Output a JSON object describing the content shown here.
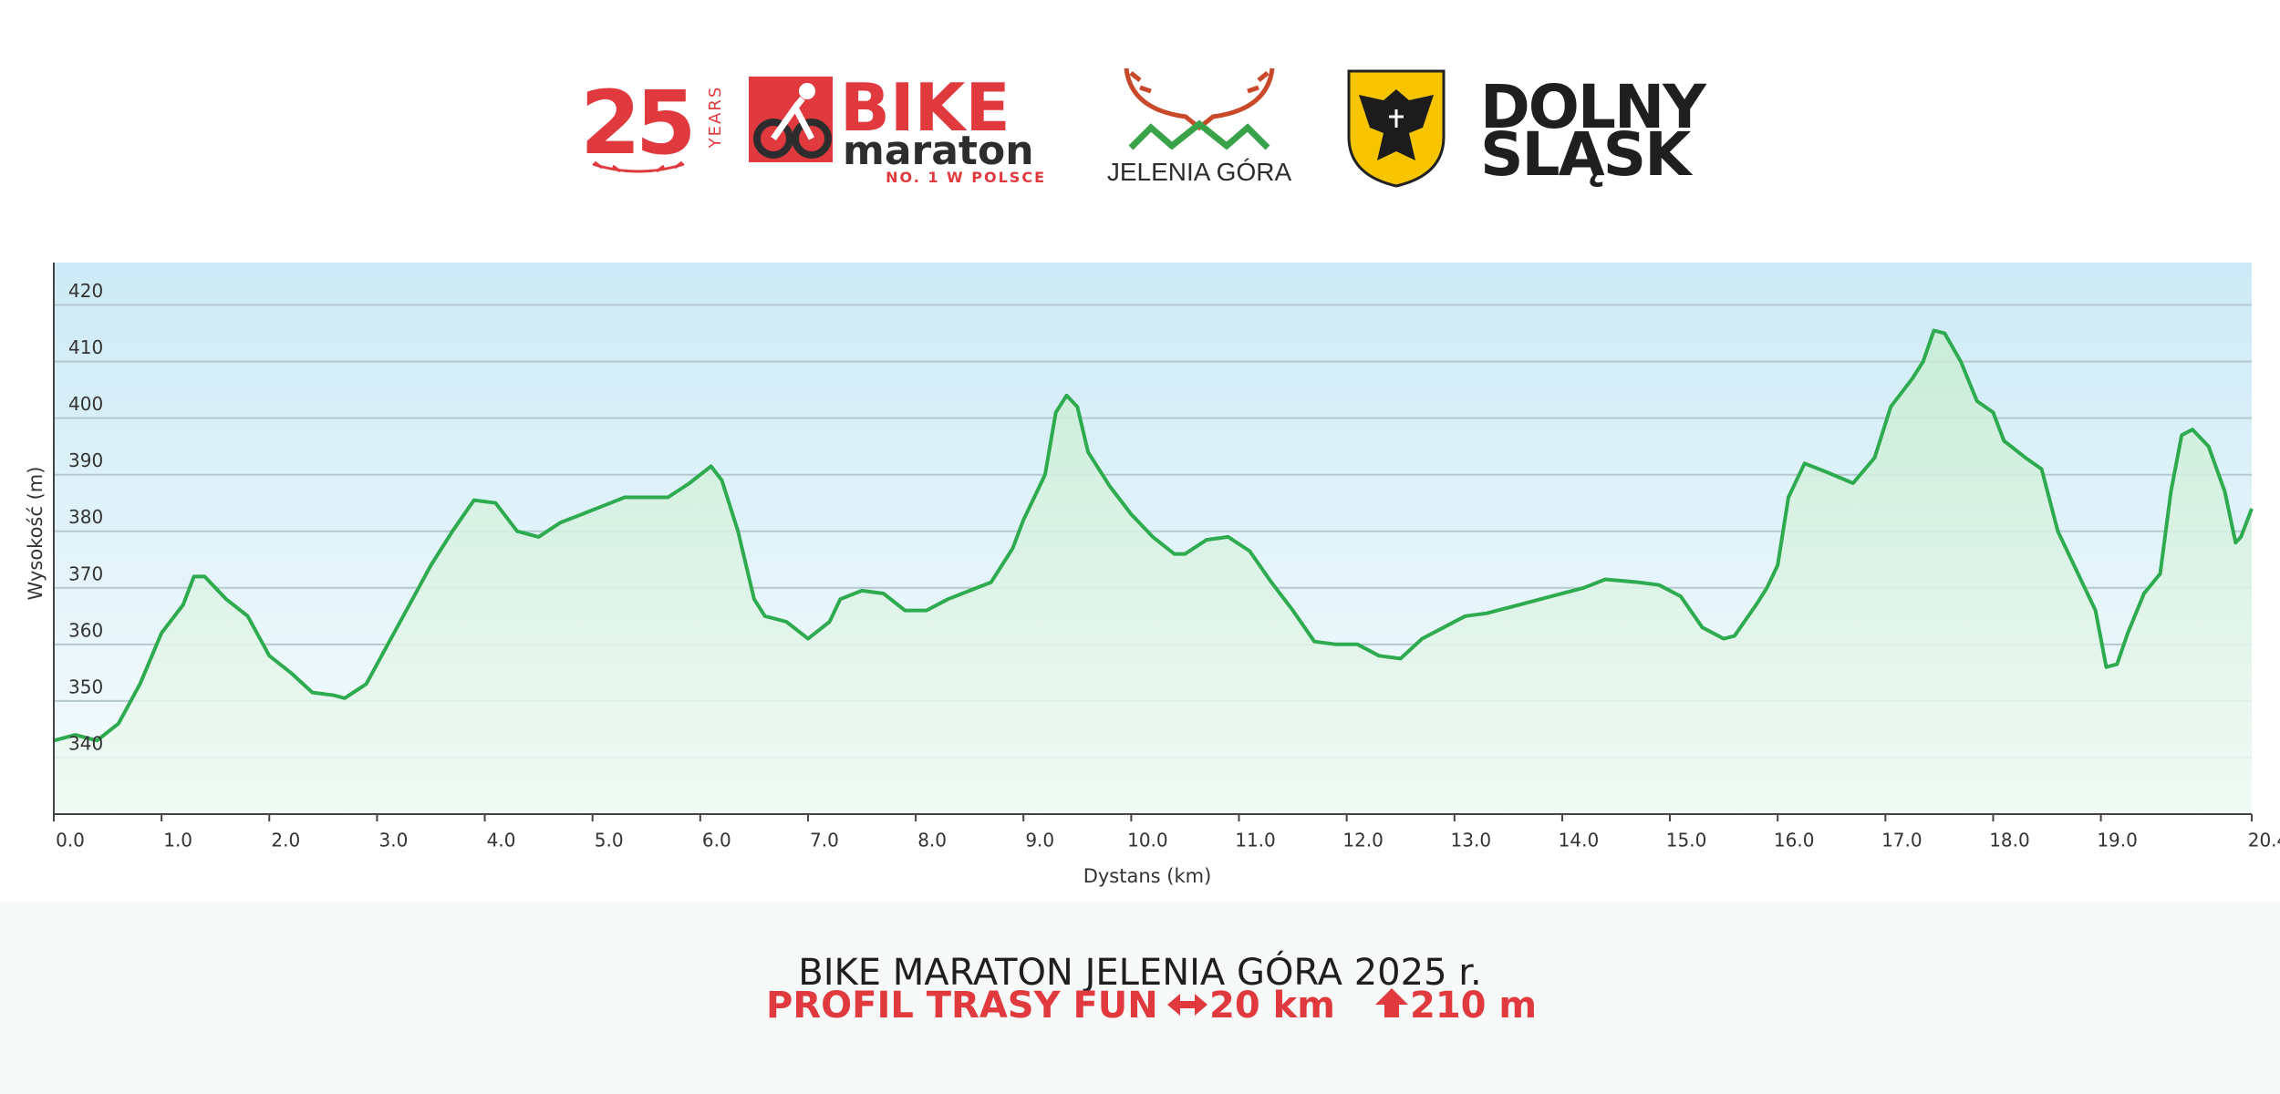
{
  "header": {
    "anniversary": "25",
    "years": "YEARS",
    "brand": "BIKE",
    "brand_sub": "maraton",
    "tagline": "NO. 1 W POLSCE",
    "city": "JELENIA GÓRA",
    "region_line1": "DOLNY",
    "region_line2": "ŚLĄSK"
  },
  "chart_data": {
    "type": "area",
    "x_label": "Dystans  (km)",
    "y_label": "Wysokość (m)",
    "color": "#2eaa4f",
    "x": [
      0,
      0.2,
      0.4,
      0.6,
      0.8,
      1.0,
      1.2,
      1.3,
      1.4,
      1.6,
      1.8,
      2.0,
      2.2,
      2.4,
      2.6,
      2.7,
      2.9,
      3.1,
      3.3,
      3.5,
      3.7,
      3.9,
      4.1,
      4.3,
      4.5,
      4.7,
      4.9,
      5.1,
      5.3,
      5.5,
      5.7,
      5.9,
      6.1,
      6.2,
      6.35,
      6.5,
      6.6,
      6.8,
      7.0,
      7.2,
      7.3,
      7.5,
      7.7,
      7.9,
      8.1,
      8.3,
      8.5,
      8.7,
      8.9,
      9.0,
      9.2,
      9.3,
      9.4,
      9.5,
      9.6,
      9.8,
      10.0,
      10.2,
      10.4,
      10.5,
      10.7,
      10.9,
      11.1,
      11.3,
      11.5,
      11.7,
      11.9,
      12.1,
      12.3,
      12.5,
      12.7,
      12.9,
      13.1,
      13.3,
      13.6,
      13.9,
      14.2,
      14.4,
      14.7,
      14.9,
      15.1,
      15.3,
      15.5,
      15.6,
      15.8,
      15.9,
      16.0,
      16.1,
      16.25,
      16.45,
      16.7,
      16.9,
      17.05,
      17.25,
      17.35,
      17.45,
      17.55,
      17.7,
      17.85,
      18.0,
      18.1,
      18.3,
      18.45,
      18.6,
      18.8,
      18.95,
      19.05,
      19.15,
      19.25,
      19.4,
      19.55,
      19.65,
      19.75,
      19.85,
      20.0,
      20.15,
      20.25,
      20.3,
      20.4
    ],
    "values": [
      343,
      344,
      343,
      346,
      353,
      362,
      367,
      372,
      372,
      368,
      365,
      358,
      355,
      351.5,
      351,
      350.5,
      353,
      360,
      367,
      374,
      380,
      385.5,
      385,
      380,
      379,
      381.5,
      383,
      384.5,
      386,
      386,
      386,
      388.5,
      391.5,
      389,
      380,
      368,
      365,
      364,
      361,
      364,
      368,
      369.5,
      369,
      366,
      366,
      368,
      369.5,
      371,
      377,
      382,
      390,
      401,
      404,
      402,
      394,
      388,
      383,
      379,
      376,
      376,
      378.5,
      379,
      376.5,
      371,
      366,
      360.5,
      360,
      360,
      358,
      357.5,
      361,
      363,
      365,
      365.5,
      367,
      368.5,
      370,
      371.5,
      371,
      370.5,
      368.5,
      363,
      361,
      361.5,
      367,
      370,
      374,
      386,
      392,
      390.5,
      388.5,
      393,
      402,
      407,
      410,
      415.5,
      415,
      410,
      403,
      401,
      396,
      393,
      391,
      380,
      372,
      366,
      356,
      356.5,
      362,
      369,
      372.5,
      387,
      397,
      398,
      395,
      387,
      378,
      379,
      384
    ],
    "xlim": [
      0,
      20.4
    ],
    "ylim": [
      330,
      427.5
    ],
    "xticks": [
      {
        "value": 0,
        "label": "0.0"
      },
      {
        "value": 1,
        "label": "1.0"
      },
      {
        "value": 2,
        "label": "2.0"
      },
      {
        "value": 3,
        "label": "3.0"
      },
      {
        "value": 4,
        "label": "4.0"
      },
      {
        "value": 5,
        "label": "5.0"
      },
      {
        "value": 6,
        "label": "6.0"
      },
      {
        "value": 7,
        "label": "7.0"
      },
      {
        "value": 8,
        "label": "8.0"
      },
      {
        "value": 9,
        "label": "9.0"
      },
      {
        "value": 10,
        "label": "10.0"
      },
      {
        "value": 11,
        "label": "11.0"
      },
      {
        "value": 12,
        "label": "12.0"
      },
      {
        "value": 13,
        "label": "13.0"
      },
      {
        "value": 14,
        "label": "14.0"
      },
      {
        "value": 15,
        "label": "15.0"
      },
      {
        "value": 16,
        "label": "16.0"
      },
      {
        "value": 17,
        "label": "17.0"
      },
      {
        "value": 18,
        "label": "18.0"
      },
      {
        "value": 19,
        "label": "19.0"
      },
      {
        "value": 20.4,
        "label": "20.4"
      }
    ],
    "yticks": [
      340,
      350,
      360,
      370,
      380,
      390,
      400,
      410,
      420
    ],
    "grid": true
  },
  "footer": {
    "title": "BIKE MARATON JELENIA GÓRA 2025 r.",
    "subtitle": "PROFIL TRASY FUN",
    "distance": "20 km",
    "climb": "210 m"
  }
}
